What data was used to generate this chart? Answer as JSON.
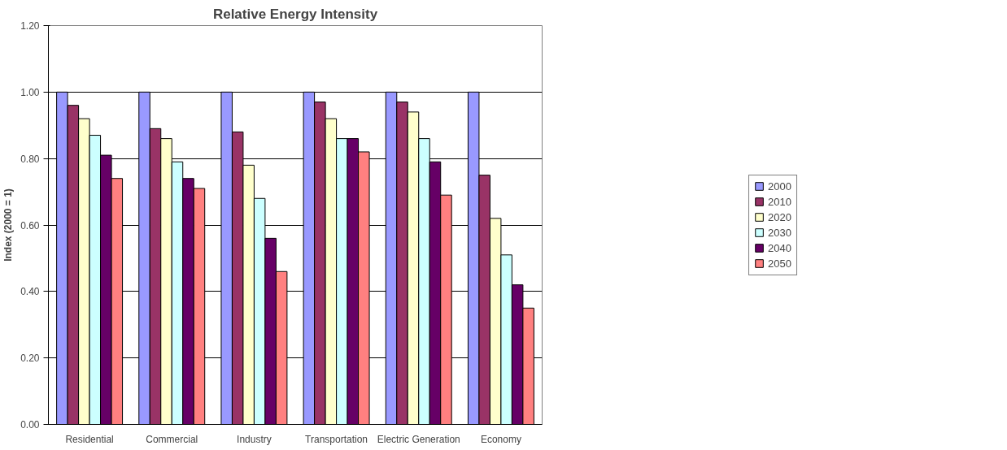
{
  "chart_data": {
    "type": "bar",
    "title": "Relative Energy Intensity",
    "ylabel": "Index (2000 = 1)",
    "categories": [
      "Residential",
      "Commercial",
      "Industry",
      "Transportation",
      "Electric Generation",
      "Economy"
    ],
    "series": [
      {
        "name": "2000",
        "color": "#9999ff",
        "values": [
          1.0,
          1.0,
          1.0,
          1.0,
          1.0,
          1.0
        ]
      },
      {
        "name": "2010",
        "color": "#993366",
        "values": [
          0.96,
          0.89,
          0.88,
          0.97,
          0.97,
          0.75
        ]
      },
      {
        "name": "2020",
        "color": "#ffffcc",
        "values": [
          0.92,
          0.86,
          0.78,
          0.92,
          0.94,
          0.62
        ]
      },
      {
        "name": "2030",
        "color": "#ccffff",
        "values": [
          0.87,
          0.79,
          0.68,
          0.86,
          0.86,
          0.51
        ]
      },
      {
        "name": "2040",
        "color": "#660066",
        "values": [
          0.81,
          0.74,
          0.56,
          0.86,
          0.79,
          0.42
        ]
      },
      {
        "name": "2050",
        "color": "#ff8080",
        "values": [
          0.74,
          0.71,
          0.46,
          0.82,
          0.69,
          0.35
        ]
      }
    ],
    "ylim": [
      0,
      1.2
    ],
    "yticks": [
      {
        "value": 0,
        "label": "0.00"
      },
      {
        "value": 0.2,
        "label": "0.20"
      },
      {
        "value": 0.4,
        "label": "0.40"
      },
      {
        "value": 0.6,
        "label": "0.60"
      },
      {
        "value": 0.8,
        "label": "0.80"
      },
      {
        "value": 1.0,
        "label": "1.00"
      },
      {
        "value": 1.2,
        "label": "1.20"
      }
    ],
    "grid": "y",
    "legend": "right"
  }
}
